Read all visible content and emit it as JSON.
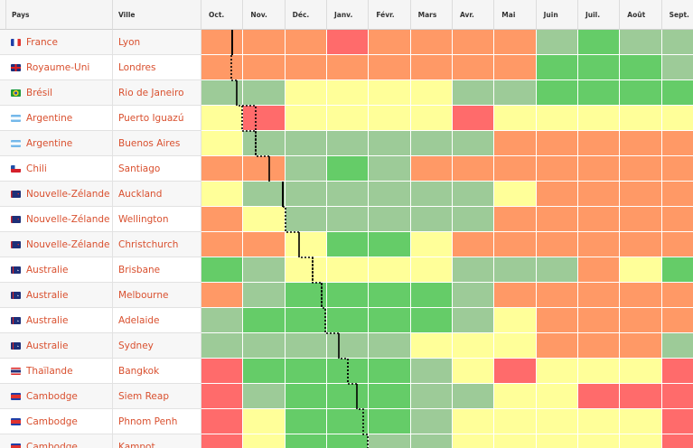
{
  "headers": {
    "country": "Pays",
    "city": "Ville",
    "months": [
      "Oct.",
      "Nov.",
      "Déc.",
      "Janv.",
      "Févr.",
      "Mars",
      "Avr.",
      "Mai",
      "Juin",
      "Juil.",
      "Août",
      "Sept."
    ]
  },
  "colors": {
    "r": "#ff6b6b",
    "o": "#ff9966",
    "y": "#ffff99",
    "lg": "#9dcb98",
    "g": "#65cc68"
  },
  "rows": [
    {
      "country": "France",
      "flag": "fr",
      "city": "Lyon",
      "cells": [
        "o",
        "o",
        "o",
        "r",
        "o",
        "o",
        "o",
        "o",
        "lg",
        "g",
        "lg",
        "lg"
      ]
    },
    {
      "country": "Royaume-Uni",
      "flag": "uk",
      "city": "Londres",
      "cells": [
        "o",
        "o",
        "o",
        "o",
        "o",
        "o",
        "o",
        "o",
        "g",
        "g",
        "g",
        "lg"
      ]
    },
    {
      "country": "Brésil",
      "flag": "br",
      "city": "Rio de Janeiro",
      "cells": [
        "lg",
        "lg",
        "y",
        "y",
        "y",
        "y",
        "lg",
        "lg",
        "g",
        "g",
        "g",
        "g"
      ]
    },
    {
      "country": "Argentine",
      "flag": "ar",
      "city": "Puerto Iguazú",
      "cells": [
        "y",
        "r",
        "y",
        "y",
        "y",
        "y",
        "r",
        "y",
        "y",
        "y",
        "y",
        "y"
      ]
    },
    {
      "country": "Argentine",
      "flag": "ar",
      "city": "Buenos Aires",
      "cells": [
        "y",
        "lg",
        "lg",
        "lg",
        "lg",
        "lg",
        "lg",
        "o",
        "o",
        "o",
        "o",
        "o"
      ]
    },
    {
      "country": "Chili",
      "flag": "cl",
      "city": "Santiago",
      "cells": [
        "o",
        "o",
        "lg",
        "g",
        "lg",
        "o",
        "o",
        "o",
        "o",
        "o",
        "o",
        "o"
      ]
    },
    {
      "country": "Nouvelle-Zélande",
      "flag": "nz",
      "city": "Auckland",
      "cells": [
        "y",
        "lg",
        "lg",
        "lg",
        "lg",
        "lg",
        "lg",
        "y",
        "o",
        "o",
        "o",
        "o"
      ]
    },
    {
      "country": "Nouvelle-Zélande",
      "flag": "nz",
      "city": "Wellington",
      "cells": [
        "o",
        "y",
        "lg",
        "lg",
        "lg",
        "lg",
        "lg",
        "o",
        "o",
        "o",
        "o",
        "o"
      ]
    },
    {
      "country": "Nouvelle-Zélande",
      "flag": "nz",
      "city": "Christchurch",
      "cells": [
        "o",
        "o",
        "y",
        "g",
        "g",
        "y",
        "o",
        "o",
        "o",
        "o",
        "o",
        "o"
      ]
    },
    {
      "country": "Australie",
      "flag": "au",
      "city": "Brisbane",
      "cells": [
        "g",
        "lg",
        "y",
        "y",
        "y",
        "y",
        "lg",
        "lg",
        "lg",
        "o",
        "y",
        "g"
      ]
    },
    {
      "country": "Australie",
      "flag": "au",
      "city": "Melbourne",
      "cells": [
        "o",
        "lg",
        "g",
        "g",
        "g",
        "g",
        "lg",
        "o",
        "o",
        "o",
        "o",
        "o"
      ]
    },
    {
      "country": "Australie",
      "flag": "au",
      "city": "Adelaide",
      "cells": [
        "lg",
        "g",
        "g",
        "g",
        "g",
        "g",
        "lg",
        "y",
        "o",
        "o",
        "o",
        "o"
      ]
    },
    {
      "country": "Australie",
      "flag": "au",
      "city": "Sydney",
      "cells": [
        "lg",
        "lg",
        "lg",
        "lg",
        "lg",
        "y",
        "y",
        "y",
        "o",
        "o",
        "o",
        "lg"
      ]
    },
    {
      "country": "Thaïlande",
      "flag": "th",
      "city": "Bangkok",
      "cells": [
        "r",
        "g",
        "g",
        "g",
        "g",
        "lg",
        "y",
        "r",
        "y",
        "y",
        "y",
        "r"
      ]
    },
    {
      "country": "Cambodge",
      "flag": "kh",
      "city": "Siem Reap",
      "cells": [
        "r",
        "lg",
        "g",
        "g",
        "g",
        "lg",
        "lg",
        "y",
        "y",
        "r",
        "r",
        "r"
      ]
    },
    {
      "country": "Cambodge",
      "flag": "kh",
      "city": "Phnom Penh",
      "cells": [
        "r",
        "y",
        "g",
        "g",
        "g",
        "lg",
        "y",
        "y",
        "y",
        "y",
        "y",
        "r"
      ]
    },
    {
      "country": "Cambodge",
      "flag": "kh",
      "city": "Kampot",
      "cells": [
        "r",
        "y",
        "g",
        "g",
        "lg",
        "lg",
        "y",
        "y",
        "y",
        "y",
        "y",
        "r"
      ]
    }
  ]
}
